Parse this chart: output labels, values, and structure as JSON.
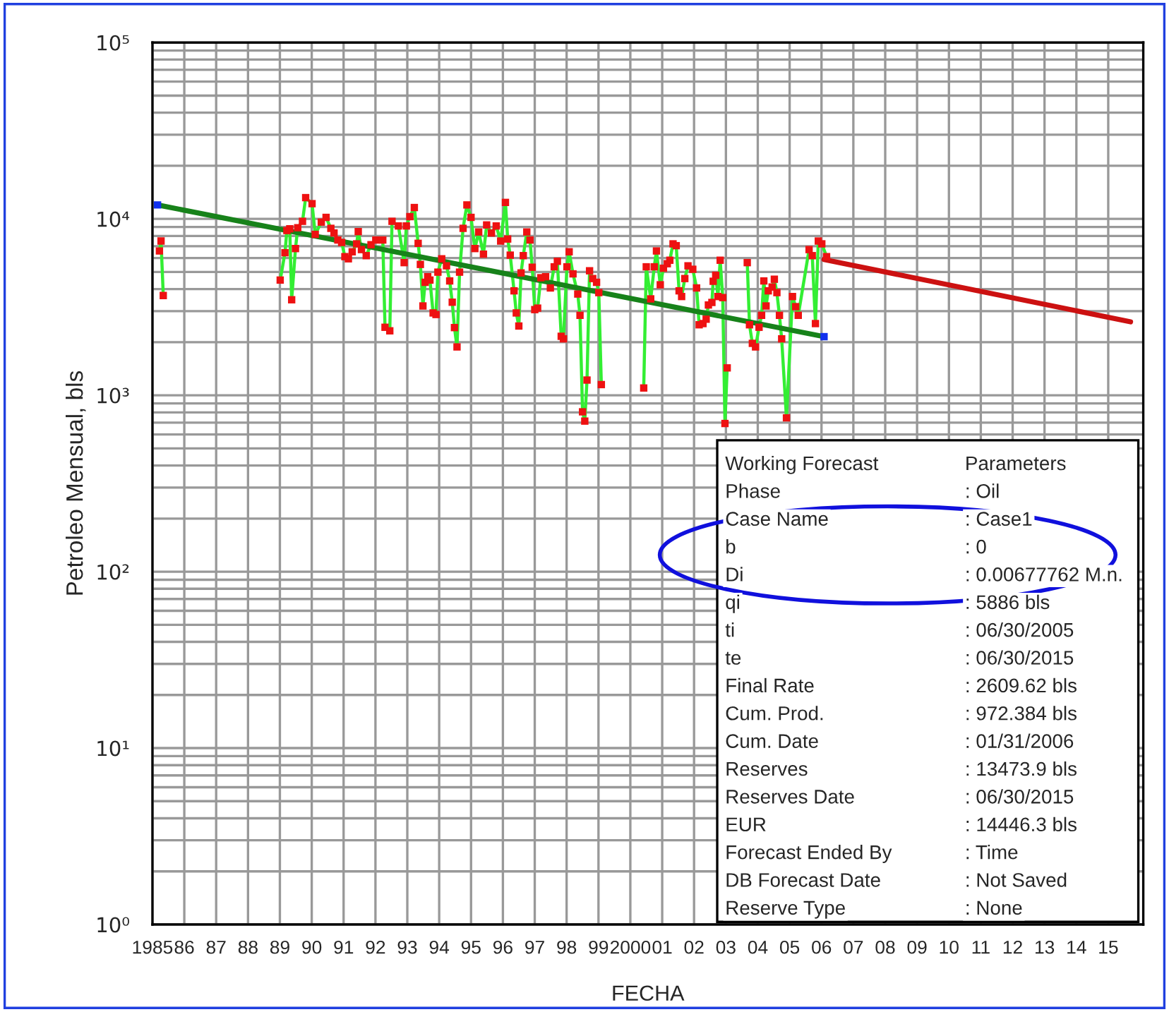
{
  "chart_data": {
    "type": "line",
    "xlabel": "FECHA",
    "ylabel": "Petroleo Mensual, bls",
    "log": "y",
    "grid": true,
    "legend": false,
    "xlim": [
      1985,
      2016.1
    ],
    "xticks": [
      {
        "value": 1985,
        "label": "1985"
      },
      {
        "value": 1986,
        "label": "86"
      },
      {
        "value": 1987,
        "label": "87"
      },
      {
        "value": 1988,
        "label": "88"
      },
      {
        "value": 1989,
        "label": "89"
      },
      {
        "value": 1990,
        "label": "90"
      },
      {
        "value": 1991,
        "label": "91"
      },
      {
        "value": 1992,
        "label": "92"
      },
      {
        "value": 1993,
        "label": "93"
      },
      {
        "value": 1994,
        "label": "94"
      },
      {
        "value": 1995,
        "label": "95"
      },
      {
        "value": 1996,
        "label": "96"
      },
      {
        "value": 1997,
        "label": "97"
      },
      {
        "value": 1998,
        "label": "98"
      },
      {
        "value": 1999,
        "label": "99"
      },
      {
        "value": 2000,
        "label": "2000"
      },
      {
        "value": 2001,
        "label": "01"
      },
      {
        "value": 2002,
        "label": "02"
      },
      {
        "value": 2003,
        "label": "03"
      },
      {
        "value": 2004,
        "label": "04"
      },
      {
        "value": 2005,
        "label": "05"
      },
      {
        "value": 2006,
        "label": "06"
      },
      {
        "value": 2007,
        "label": "07"
      },
      {
        "value": 2008,
        "label": "08"
      },
      {
        "value": 2009,
        "label": "09"
      },
      {
        "value": 2010,
        "label": "10"
      },
      {
        "value": 2011,
        "label": "11"
      },
      {
        "value": 2012,
        "label": "12"
      },
      {
        "value": 2013,
        "label": "13"
      },
      {
        "value": 2014,
        "label": "14"
      },
      {
        "value": 2015,
        "label": "15"
      }
    ],
    "ylim": [
      1,
      100000
    ],
    "yticks": [
      {
        "value": 1,
        "label": "10⁰"
      },
      {
        "value": 10,
        "label": "10¹"
      },
      {
        "value": 100,
        "label": "10²"
      },
      {
        "value": 1000,
        "label": "10³"
      },
      {
        "value": 10000,
        "label": "10⁴"
      },
      {
        "value": 100000,
        "label": "10⁵"
      }
    ],
    "series": [
      {
        "color": "#33ee33",
        "x": [
          1985.22,
          1985.27,
          1985.34,
          1987.2,
          1989.01,
          1989.16,
          1989.22,
          1989.31,
          1989.37,
          1989.49,
          1989.56,
          1989.71,
          1989.81,
          1990.01,
          1990.11,
          1990.3,
          1990.45,
          1990.6,
          1990.7,
          1990.82,
          1990.94,
          1991.04,
          1991.15,
          1991.27,
          1991.41,
          1991.46,
          1991.56,
          1991.71,
          1991.86,
          1992.01,
          1992.23,
          1992.3,
          1992.45,
          1992.52,
          1992.72,
          1992.9,
          1992.97,
          1993.08,
          1993.22,
          1993.34,
          1993.41,
          1993.49,
          1993.56,
          1993.64,
          1993.71,
          1993.81,
          1993.9,
          1993.96,
          1994.08,
          1994.23,
          1994.33,
          1994.41,
          1994.48,
          1994.56,
          1994.64,
          1994.75,
          1994.87,
          1995.0,
          1995.12,
          1995.24,
          1995.39,
          1995.49,
          1995.64,
          1995.79,
          1995.93,
          1996.08,
          1996.15,
          1996.23,
          1996.35,
          1996.42,
          1996.5,
          1996.57,
          1996.64,
          1996.75,
          1996.85,
          1996.92,
          1997.0,
          1997.09,
          1997.19,
          1997.34,
          1997.49,
          1997.61,
          1997.71,
          1997.83,
          1997.9,
          1998.01,
          1998.08,
          1998.2,
          1998.35,
          1998.42,
          1998.5,
          1998.57,
          1998.64,
          1998.72,
          1998.82,
          1998.94,
          1999.01,
          1999.09,
          1999.8,
          2000.42,
          2000.5,
          2000.64,
          2000.75,
          2000.82,
          2000.94,
          2001.04,
          2001.16,
          2001.24,
          2001.34,
          2001.44,
          2001.53,
          2001.61,
          2001.71,
          2001.81,
          2001.96,
          2002.08,
          2002.16,
          2002.28,
          2002.38,
          2002.45,
          2002.56,
          2002.6,
          2002.68,
          2002.75,
          2002.82,
          2002.9,
          2002.97,
          2003.04,
          2003.35,
          2003.67,
          2003.74,
          2003.83,
          2003.93,
          2004.04,
          2004.12,
          2004.19,
          2004.26,
          2004.33,
          2004.45,
          2004.52,
          2004.6,
          2004.68,
          2004.75,
          2004.9,
          2005.09,
          2005.19,
          2005.27,
          2005.61,
          2005.71,
          2005.81,
          2005.9,
          2006.01,
          2006.16
        ],
        "values": [
          6580,
          7490,
          3680,
          null,
          4500,
          6430,
          8590,
          8790,
          3480,
          6790,
          8910,
          9690,
          13200,
          12200,
          8170,
          9590,
          10200,
          8840,
          8320,
          7590,
          7350,
          6110,
          5940,
          6510,
          7220,
          8470,
          6700,
          6190,
          7140,
          7590,
          7590,
          2430,
          2320,
          9690,
          9120,
          5650,
          9120,
          10300,
          11600,
          7270,
          5520,
          3210,
          4370,
          4700,
          4500,
          2930,
          2870,
          4990,
          5940,
          5420,
          4450,
          3370,
          2420,
          1880,
          4990,
          8840,
          12000,
          10200,
          6790,
          8430,
          6310,
          9240,
          8320,
          9120,
          7490,
          12400,
          7690,
          6230,
          3910,
          2930,
          2470,
          4940,
          6190,
          8430,
          7590,
          5320,
          3060,
          3120,
          4640,
          4700,
          4060,
          5350,
          5750,
          2160,
          2090,
          5350,
          6510,
          4880,
          3750,
          2840,
          806,
          714,
          1220,
          5080,
          4590,
          4370,
          3820,
          1150,
          null,
          1100,
          5350,
          3520,
          5350,
          6580,
          4230,
          5250,
          5570,
          5830,
          7220,
          7050,
          3910,
          3630,
          4590,
          5420,
          5180,
          4060,
          2510,
          2550,
          2700,
          3250,
          3360,
          4430,
          4790,
          3630,
          5830,
          3580,
          692,
          1430,
          null,
          5650,
          2510,
          1970,
          1880,
          2430,
          2840,
          4450,
          3210,
          3910,
          4110,
          4550,
          3820,
          2840,
          2090,
          745,
          3630,
          3180,
          2840,
          6700,
          6190,
          2550,
          7490,
          7220,
          6110
        ]
      },
      {
        "type": "scatter",
        "color": "#ee1111",
        "marker": "square",
        "x": [
          1985.22,
          1985.27,
          1985.34,
          1989.01,
          1989.16,
          1989.22,
          1989.31,
          1989.37,
          1989.49,
          1989.56,
          1989.71,
          1989.81,
          1990.01,
          1990.11,
          1990.3,
          1990.45,
          1990.6,
          1990.7,
          1990.82,
          1990.94,
          1991.04,
          1991.15,
          1991.27,
          1991.41,
          1991.46,
          1991.56,
          1991.71,
          1991.86,
          1992.01,
          1992.23,
          1992.3,
          1992.45,
          1992.52,
          1992.72,
          1992.9,
          1992.97,
          1993.08,
          1993.22,
          1993.34,
          1993.41,
          1993.49,
          1993.56,
          1993.64,
          1993.71,
          1993.81,
          1993.9,
          1993.96,
          1994.08,
          1994.23,
          1994.33,
          1994.41,
          1994.48,
          1994.56,
          1994.64,
          1994.75,
          1994.87,
          1995.0,
          1995.12,
          1995.24,
          1995.39,
          1995.49,
          1995.64,
          1995.79,
          1995.93,
          1996.08,
          1996.15,
          1996.23,
          1996.35,
          1996.42,
          1996.5,
          1996.57,
          1996.64,
          1996.75,
          1996.85,
          1996.92,
          1997.0,
          1997.09,
          1997.19,
          1997.34,
          1997.49,
          1997.61,
          1997.71,
          1997.83,
          1997.9,
          1998.01,
          1998.08,
          1998.2,
          1998.35,
          1998.42,
          1998.5,
          1998.57,
          1998.64,
          1998.72,
          1998.82,
          1998.94,
          1999.01,
          1999.09,
          2000.42,
          2000.5,
          2000.64,
          2000.75,
          2000.82,
          2000.94,
          2001.04,
          2001.16,
          2001.24,
          2001.34,
          2001.44,
          2001.53,
          2001.61,
          2001.71,
          2001.81,
          2001.96,
          2002.08,
          2002.16,
          2002.28,
          2002.38,
          2002.45,
          2002.56,
          2002.6,
          2002.68,
          2002.75,
          2002.82,
          2002.9,
          2002.97,
          2003.04,
          2003.67,
          2003.74,
          2003.83,
          2003.93,
          2004.04,
          2004.12,
          2004.19,
          2004.26,
          2004.33,
          2004.45,
          2004.52,
          2004.6,
          2004.68,
          2004.75,
          2004.9,
          2005.09,
          2005.19,
          2005.27,
          2005.61,
          2005.71,
          2005.81,
          2005.9,
          2006.01,
          2006.16
        ],
        "values": [
          6580,
          7490,
          3680,
          4500,
          6430,
          8590,
          8790,
          3480,
          6790,
          8910,
          9690,
          13200,
          12200,
          8170,
          9590,
          10200,
          8840,
          8320,
          7590,
          7350,
          6110,
          5940,
          6510,
          7220,
          8470,
          6700,
          6190,
          7140,
          7590,
          7590,
          2430,
          2320,
          9690,
          9120,
          5650,
          9120,
          10300,
          11600,
          7270,
          5520,
          3210,
          4370,
          4700,
          4500,
          2930,
          2870,
          4990,
          5940,
          5420,
          4450,
          3370,
          2420,
          1880,
          4990,
          8840,
          12000,
          10200,
          6790,
          8430,
          6310,
          9240,
          8320,
          9120,
          7490,
          12400,
          7690,
          6230,
          3910,
          2930,
          2470,
          4940,
          6190,
          8430,
          7590,
          5320,
          3060,
          3120,
          4640,
          4700,
          4060,
          5350,
          5750,
          2160,
          2090,
          5350,
          6510,
          4880,
          3750,
          2840,
          806,
          714,
          1220,
          5080,
          4590,
          4370,
          3820,
          1150,
          1100,
          5350,
          3520,
          5350,
          6580,
          4230,
          5250,
          5570,
          5830,
          7220,
          7050,
          3910,
          3630,
          4590,
          5420,
          5180,
          4060,
          2510,
          2550,
          2700,
          3250,
          3360,
          4430,
          4790,
          3630,
          5830,
          3580,
          692,
          1430,
          5650,
          2510,
          1970,
          1880,
          2430,
          2840,
          4450,
          3210,
          3910,
          4110,
          4550,
          3820,
          2840,
          2090,
          745,
          3630,
          3180,
          2840,
          6700,
          6190,
          2550,
          7490,
          7220,
          6110
        ]
      },
      {
        "type": "line",
        "color": "#17821a",
        "x": [
          1985.16,
          2006.08
        ],
        "values": [
          12000,
          2150
        ]
      },
      {
        "type": "scatter",
        "color": "#1030ee",
        "marker": "square",
        "x": [
          1985.16,
          2006.08
        ],
        "values": [
          12000,
          2150
        ]
      },
      {
        "type": "line",
        "color": "#cc1111",
        "x": [
          2006.08,
          2015.7
        ],
        "values": [
          5886,
          2610
        ]
      }
    ],
    "annotations": [
      "Working Forecast",
      "Parameters",
      "Phase",
      ": Oil",
      "Case Name",
      ": Case1",
      "b",
      ": 0",
      "Di",
      ": 0.00677762 M.n.",
      "qi",
      ": 5886 bls",
      "ti",
      ": 06/30/2005",
      "te",
      ": 06/30/2015",
      "Final Rate",
      ": 2609.62 bls",
      "Cum. Prod.",
      ": 972.384 bls",
      "Cum. Date",
      ": 01/31/2006",
      "Reserves",
      ": 13473.9 bls",
      "Reserves Date",
      ": 06/30/2015",
      "EUR",
      ": 14446.3 bls",
      "Forecast Ended By",
      ": Time",
      "DB Forecast Date",
      ": Not Saved",
      "Reserve Type",
      ": None"
    ]
  }
}
